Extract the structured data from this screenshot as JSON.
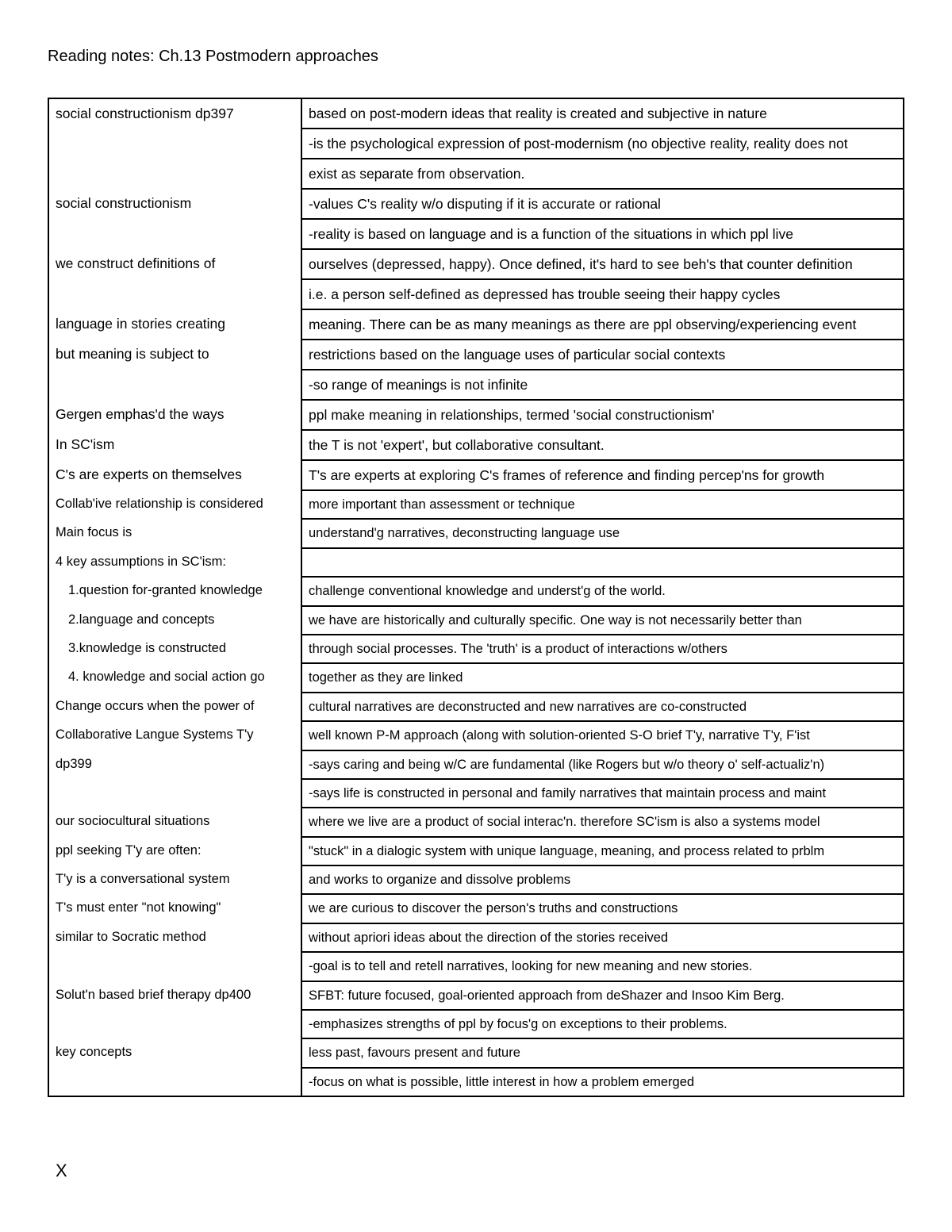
{
  "title": "Reading notes: Ch.13 Postmodern approaches",
  "rows": [
    {
      "left": "social constructionism dp397",
      "right": "based on post-modern ideas that reality is created and subjective in nature"
    },
    {
      "left": "",
      "right": "-is the psychological expression of post-modernism (no objective reality, reality does not"
    },
    {
      "left": "",
      "right": "exist as separate from observation."
    },
    {
      "left": "social constructionism",
      "right": "-values C's reality w/o disputing if it is accurate or rational"
    },
    {
      "left": "",
      "right": "-reality is based on language and is a function of the situations in which ppl live"
    },
    {
      "left": "we construct definitions of",
      "right": "ourselves (depressed, happy). Once defined, it's hard to see beh's that counter definition"
    },
    {
      "left": "",
      "right": "i.e. a person self-defined as depressed has trouble seeing their happy cycles"
    },
    {
      "left": "language in stories creating",
      "right": "meaning. There can be as many meanings as there are ppl observing/experiencing event"
    },
    {
      "left": "but meaning is subject to",
      "right": "restrictions based on the language uses of particular social contexts"
    },
    {
      "left": "",
      "right": "-so range of meanings is not infinite"
    },
    {
      "left": "Gergen emphas'd the ways",
      "right": "ppl make meaning in relationships, termed 'social constructionism'"
    },
    {
      "left": "In SC'ism",
      "right": "the T is not 'expert', but collaborative consultant."
    },
    {
      "left": "C's are experts on themselves",
      "right": "T's are experts at exploring C's frames of reference and finding percep'ns for growth"
    },
    {
      "left": "Collab'ive relationship is considered",
      "right": "more important than assessment or technique",
      "small": true
    },
    {
      "left": "Main focus is",
      "right": "understand'g narratives, deconstructing language use",
      "small": true
    },
    {
      "left": "4 key assumptions in SC'ism:",
      "right": "",
      "small": true
    },
    {
      "left": "1.question for-granted knowledge",
      "right": "challenge conventional knowledge and underst'g of the world.",
      "indent": true,
      "small": true
    },
    {
      "left": "2.language and concepts",
      "right": "we have are historically and culturally specific. One way is not necessarily better than",
      "indent": true,
      "small": true
    },
    {
      "left": "3.knowledge is constructed",
      "right": "through social processes. The 'truth' is a product of interactions w/others",
      "indent": true,
      "small": true
    },
    {
      "left": "4. knowledge and social action go",
      "right": "together as they are linked",
      "indent": true,
      "small": true
    },
    {
      "left": "Change occurs when the power of",
      "right": "cultural narratives are deconstructed and new narratives are co-constructed",
      "small": true
    },
    {
      "left": "Collaborative Langue Systems T'y",
      "right": "well known P-M approach (along with solution-oriented S-O brief T'y, narrative T'y, F'ist",
      "small": true
    },
    {
      "left": "dp399",
      "right": "-says caring and being w/C are fundamental (like Rogers but w/o theory o' self-actualiz'n)",
      "small": true
    },
    {
      "left": "",
      "right": "-says life is constructed in personal and family narratives that maintain process and maint",
      "small": true
    },
    {
      "left": "our sociocultural situations",
      "right": "where we live are a product of social interac'n. therefore SC'ism is also a systems model",
      "small": true
    },
    {
      "left": "ppl seeking T'y are often:",
      "right": "\"stuck\" in a dialogic system with unique language, meaning, and process related to prblm",
      "small": true
    },
    {
      "left": "T'y is a conversational system",
      "right": "and works to organize and dissolve problems",
      "small": true
    },
    {
      "left": "T's must enter \"not knowing\"",
      "right": "we are curious to discover the person's truths and constructions",
      "small": true
    },
    {
      "left": "similar to Socratic method",
      "right": "without apriori ideas about the direction of the stories received",
      "small": true
    },
    {
      "left": "",
      "right": "-goal is to tell and retell narratives, looking for  new meaning and new stories.",
      "small": true
    },
    {
      "left": "Solut'n based brief therapy dp400",
      "right": "SFBT: future focused, goal-oriented approach from deShazer and Insoo Kim Berg.",
      "small": true
    },
    {
      "left": "",
      "right": "-emphasizes strengths of ppl by focus'g on exceptions to their problems.",
      "small": true
    },
    {
      "left": "key concepts",
      "right": "less past, favours present and future",
      "small": true
    },
    {
      "left": "",
      "right": "-focus on what is possible, little interest in how a problem emerged",
      "small": true
    }
  ],
  "footer": "X"
}
